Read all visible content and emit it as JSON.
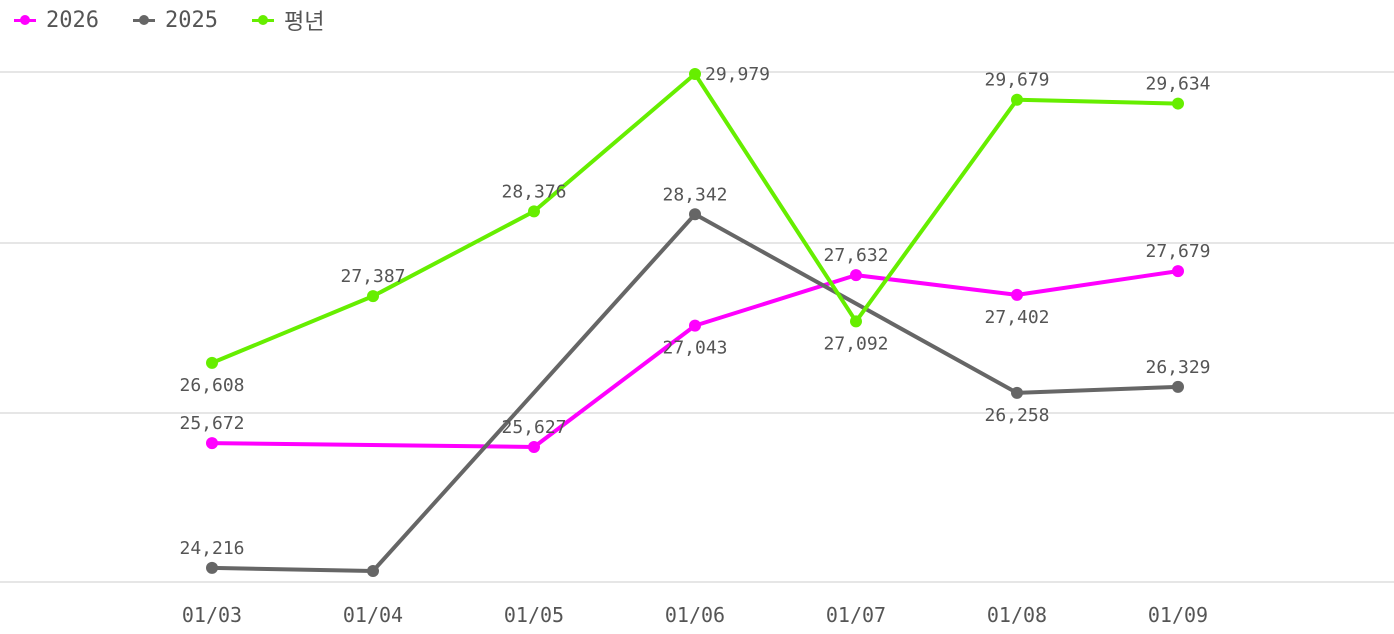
{
  "chart_data": {
    "type": "line",
    "categories": [
      "01/03",
      "01/04",
      "01/05",
      "01/06",
      "01/07",
      "01/08",
      "01/09"
    ],
    "series": [
      {
        "name": "2026",
        "color": "#ff00ff",
        "values": [
          25672,
          null,
          25627,
          27043,
          27632,
          27402,
          27679
        ],
        "labels": [
          "25,672",
          "",
          "25,627",
          "27,043",
          "27,632",
          "27,402",
          "27,679"
        ]
      },
      {
        "name": "2025",
        "color": "#666666",
        "values": [
          24216,
          24180,
          null,
          28342,
          null,
          26258,
          26329
        ],
        "labels": [
          "24,216",
          "",
          "",
          "28,342",
          "",
          "26,258",
          "26,329"
        ]
      },
      {
        "name": "평년",
        "color": "#66ee00",
        "values": [
          26608,
          27387,
          28376,
          29979,
          27092,
          29679,
          29634
        ],
        "labels": [
          "26,608",
          "27,387",
          "28,376",
          "29,979",
          "27,092",
          "29,679",
          "29,634"
        ]
      }
    ],
    "ylim": [
      24180,
      29979
    ],
    "grid": true,
    "legend": "top-left"
  }
}
